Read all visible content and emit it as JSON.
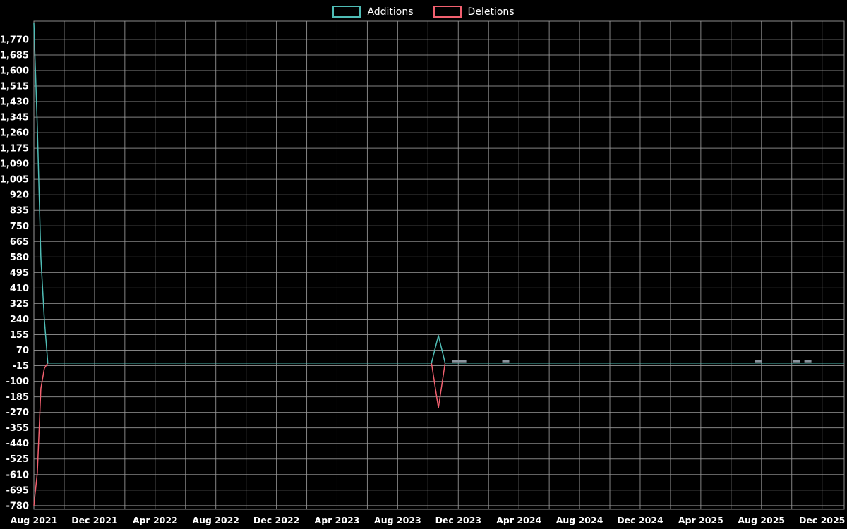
{
  "legend": {
    "additions_label": "Additions",
    "deletions_label": "Deletions"
  },
  "chart_data": {
    "type": "line",
    "title": "",
    "xlabel": "",
    "ylabel": "",
    "background_color": "#000000",
    "grid": true,
    "grid_color": "#9a9a9a",
    "text_color": "#ffffff",
    "legend_position": "top-center",
    "x_unit": "week",
    "x_range": [
      "2021-08-01",
      "2026-01-15"
    ],
    "x_tick_interval_months": 4,
    "x_grid_interval_months": 2,
    "x_tick_labels": [
      "Aug 2021",
      "Dec 2021",
      "Apr 2022",
      "Aug 2022",
      "Dec 2022",
      "Apr 2023",
      "Aug 2023",
      "Dec 2023",
      "Apr 2024",
      "Aug 2024",
      "Dec 2024",
      "Apr 2025",
      "Aug 2025",
      "Dec 2025"
    ],
    "y_range": [
      -800,
      1870
    ],
    "y_tick_step": 85,
    "y_ticks": [
      1770,
      1685,
      1600,
      1515,
      1430,
      1345,
      1260,
      1175,
      1090,
      1005,
      920,
      835,
      750,
      665,
      580,
      495,
      410,
      325,
      240,
      155,
      70,
      -15,
      -100,
      -185,
      -270,
      -355,
      -440,
      -525,
      -610,
      -695,
      -780
    ],
    "series": [
      {
        "name": "Additions",
        "color": "#4fbcb5",
        "points": [
          [
            "2021-08-01",
            1860
          ],
          [
            "2021-08-08",
            1290
          ],
          [
            "2021-08-15",
            575
          ],
          [
            "2021-08-22",
            240
          ],
          [
            "2021-08-29",
            0
          ],
          [
            "2023-10-08",
            0
          ],
          [
            "2023-10-22",
            150
          ],
          [
            "2023-11-05",
            0
          ],
          [
            "2026-01-15",
            0
          ]
        ]
      },
      {
        "name": "Deletions",
        "color": "#f2606f",
        "points": [
          [
            "2021-08-01",
            -780
          ],
          [
            "2021-08-08",
            -600
          ],
          [
            "2021-08-15",
            -140
          ],
          [
            "2021-08-22",
            -30
          ],
          [
            "2021-08-29",
            0
          ],
          [
            "2023-10-08",
            0
          ],
          [
            "2023-10-22",
            -245
          ],
          [
            "2023-11-05",
            0
          ],
          [
            "2026-01-15",
            0
          ]
        ]
      }
    ],
    "zero_markers": {
      "color": "#8b949e",
      "dates": [
        "2023-11-26",
        "2023-12-10",
        "2024-03-05",
        "2025-07-25",
        "2025-10-10",
        "2025-11-03"
      ]
    }
  }
}
